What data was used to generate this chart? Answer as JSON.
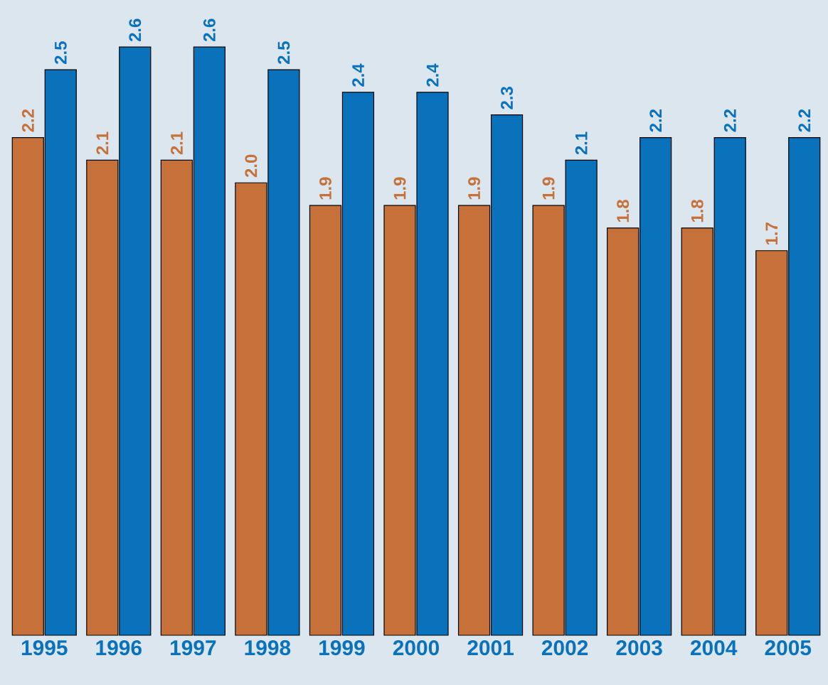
{
  "chart_data": {
    "type": "bar",
    "categories": [
      "1995",
      "1996",
      "1997",
      "1998",
      "1999",
      "2000",
      "2001",
      "2002",
      "2003",
      "2004",
      "2005"
    ],
    "series": [
      {
        "color": "#c6703a",
        "values": [
          2.2,
          2.1,
          2.1,
          2.0,
          1.9,
          1.9,
          1.9,
          1.9,
          1.8,
          1.8,
          1.7
        ],
        "value_labels": [
          "2.2",
          "2.1",
          "2.1",
          "2.0",
          "1.9",
          "1.9",
          "1.9",
          "1.9",
          "1.8",
          "1.8",
          "1.7"
        ]
      },
      {
        "color": "#0a72bb",
        "values": [
          2.5,
          2.6,
          2.6,
          2.5,
          2.4,
          2.4,
          2.3,
          2.1,
          2.2,
          2.2,
          2.2
        ],
        "value_labels": [
          "2.5",
          "2.6",
          "2.6",
          "2.5",
          "2.4",
          "2.4",
          "2.3",
          "2.1",
          "2.2",
          "2.2",
          "2.2"
        ]
      }
    ]
  }
}
